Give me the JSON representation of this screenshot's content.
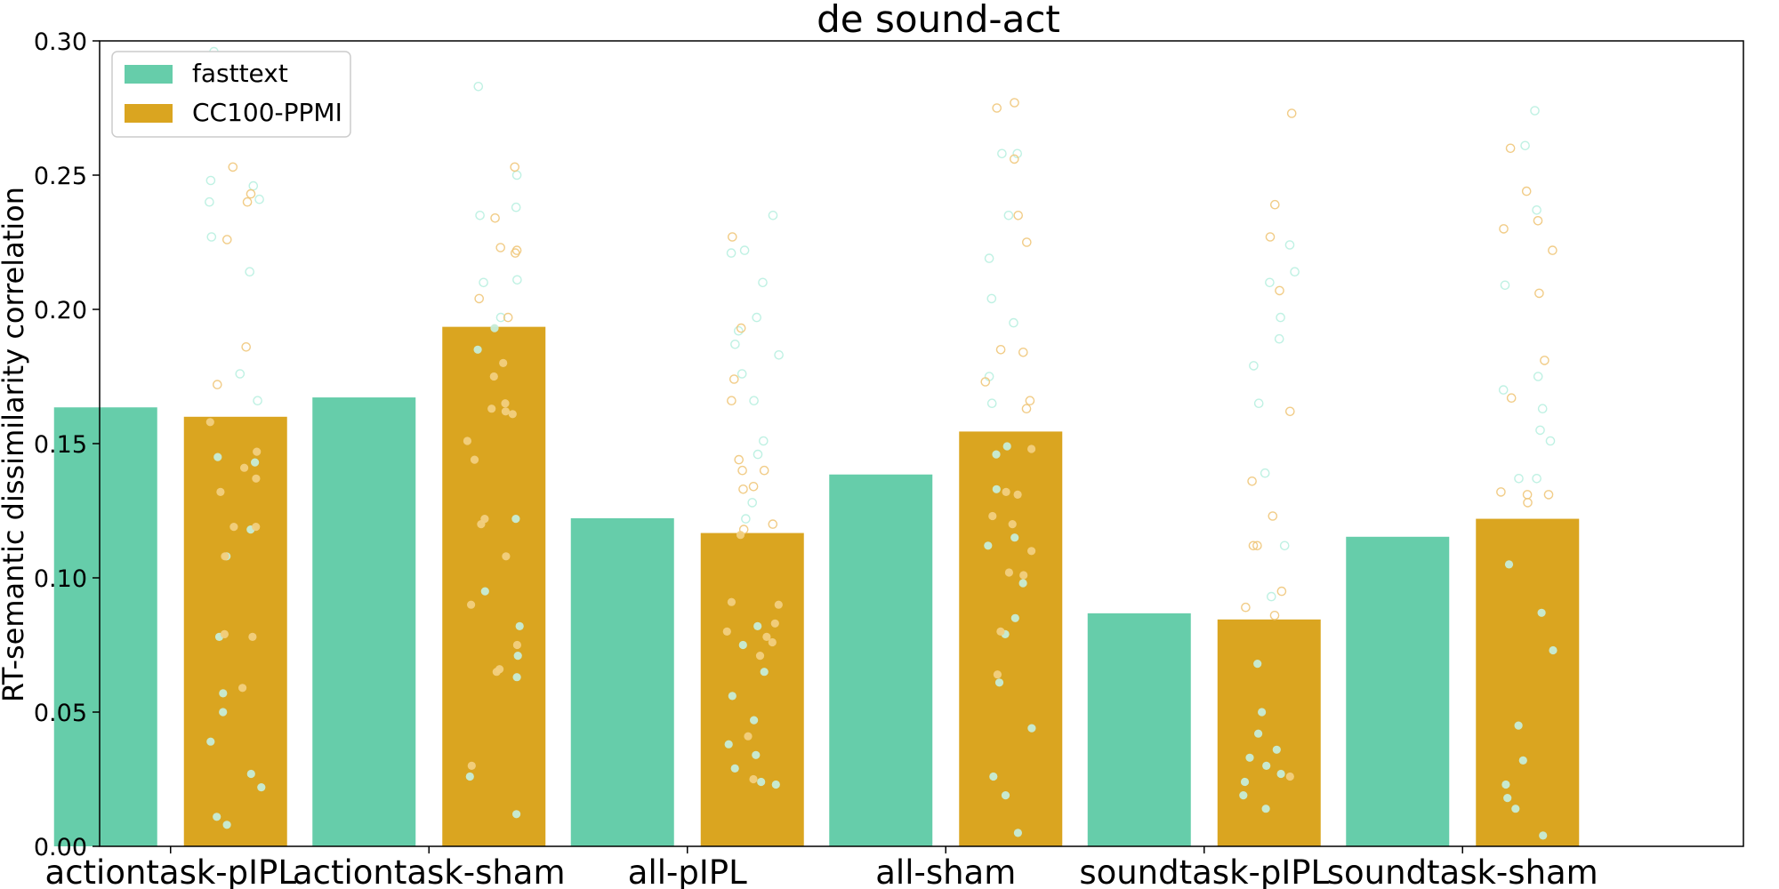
{
  "chart_data": {
    "type": "bar",
    "title": "de sound-act",
    "xlabel": "",
    "ylabel": "RT-semantic dissimilarity correlation",
    "ylim": [
      0,
      0.3
    ],
    "yticks": [
      "0.00",
      "0.05",
      "0.10",
      "0.15",
      "0.20",
      "0.25",
      "0.30"
    ],
    "grid": false,
    "legend_position": "top-left",
    "categories": [
      "actiontask-pIPL",
      "actiontask-sham",
      "all-pIPL",
      "all-sham",
      "soundtask-pIPL",
      "soundtask-sham"
    ],
    "series": [
      {
        "name": "fasttext",
        "color": "#66cdaa",
        "values": [
          0.1635,
          0.1672,
          0.1222,
          0.1385,
          0.0868,
          0.1153
        ]
      },
      {
        "name": "CC100-PPMI",
        "color": "#daa520",
        "values": [
          0.16,
          0.1935,
          0.1167,
          0.1545,
          0.0845,
          0.122
        ]
      }
    ],
    "scatter_points": {
      "fasttext": [
        [
          0.296,
          0.246,
          0.241,
          0.248,
          0.24,
          0.227,
          0.214,
          0.176,
          0.166,
          0.118,
          0.108,
          0.078,
          0.057,
          0.027,
          0.022,
          0.011,
          0.008,
          0.039,
          0.05,
          0.145,
          0.143
        ],
        [
          0.283,
          0.238,
          0.235,
          0.25,
          0.211,
          0.21,
          0.197,
          0.193,
          0.185,
          0.122,
          0.095,
          0.082,
          0.071,
          0.063,
          0.026,
          0.012
        ],
        [
          0.235,
          0.222,
          0.221,
          0.21,
          0.197,
          0.192,
          0.187,
          0.183,
          0.176,
          0.166,
          0.151,
          0.146,
          0.128,
          0.122,
          0.082,
          0.075,
          0.065,
          0.056,
          0.047,
          0.038,
          0.034,
          0.029,
          0.024,
          0.023
        ],
        [
          0.258,
          0.258,
          0.235,
          0.219,
          0.204,
          0.195,
          0.175,
          0.165,
          0.149,
          0.146,
          0.133,
          0.115,
          0.112,
          0.098,
          0.085,
          0.079,
          0.061,
          0.044,
          0.026,
          0.019,
          0.005
        ],
        [
          0.224,
          0.214,
          0.21,
          0.197,
          0.189,
          0.179,
          0.165,
          0.139,
          0.112,
          0.093,
          0.068,
          0.05,
          0.042,
          0.036,
          0.033,
          0.03,
          0.027,
          0.024,
          0.019,
          0.014
        ],
        [
          0.274,
          0.261,
          0.237,
          0.209,
          0.175,
          0.17,
          0.163,
          0.155,
          0.151,
          0.137,
          0.137,
          0.105,
          0.087,
          0.073,
          0.045,
          0.032,
          0.023,
          0.018,
          0.014,
          0.004
        ]
      ],
      "CC100-PPMI": [
        [
          0.288,
          0.253,
          0.243,
          0.24,
          0.226,
          0.186,
          0.172,
          0.158,
          0.147,
          0.141,
          0.137,
          0.132,
          0.119,
          0.119,
          0.108,
          0.079,
          0.078,
          0.059
        ],
        [
          0.253,
          0.234,
          0.223,
          0.222,
          0.221,
          0.204,
          0.197,
          0.18,
          0.175,
          0.165,
          0.163,
          0.162,
          0.161,
          0.151,
          0.144,
          0.122,
          0.12,
          0.108,
          0.09,
          0.075,
          0.066,
          0.065,
          0.03
        ],
        [
          0.227,
          0.193,
          0.174,
          0.166,
          0.144,
          0.14,
          0.14,
          0.134,
          0.133,
          0.12,
          0.118,
          0.116,
          0.091,
          0.09,
          0.083,
          0.08,
          0.078,
          0.076,
          0.071,
          0.041,
          0.025
        ],
        [
          0.277,
          0.275,
          0.256,
          0.235,
          0.225,
          0.185,
          0.184,
          0.173,
          0.166,
          0.163,
          0.148,
          0.132,
          0.131,
          0.123,
          0.12,
          0.11,
          0.102,
          0.101,
          0.08,
          0.064
        ],
        [
          0.273,
          0.239,
          0.227,
          0.207,
          0.162,
          0.136,
          0.123,
          0.112,
          0.112,
          0.095,
          0.089,
          0.086,
          0.026
        ],
        [
          0.26,
          0.244,
          0.233,
          0.23,
          0.222,
          0.206,
          0.181,
          0.167,
          0.132,
          0.131,
          0.131,
          0.128
        ]
      ]
    }
  }
}
